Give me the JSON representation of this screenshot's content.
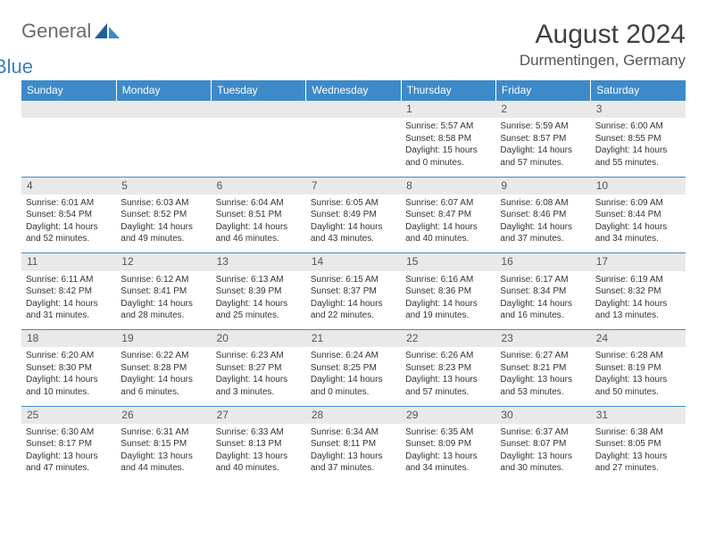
{
  "logo": {
    "general": "General",
    "blue": "Blue"
  },
  "title": {
    "month": "August 2024",
    "location": "Durmentingen, Germany"
  },
  "colors": {
    "header_bg": "#3e8ac9",
    "header_text": "#ffffff",
    "daynum_bg": "#e9e9e9",
    "cell_border": "#3e8ac9",
    "body_text": "#333333"
  },
  "daynames": [
    "Sunday",
    "Monday",
    "Tuesday",
    "Wednesday",
    "Thursday",
    "Friday",
    "Saturday"
  ],
  "weeks": [
    {
      "nums": [
        "",
        "",
        "",
        "",
        "1",
        "2",
        "3"
      ],
      "cells": [
        null,
        null,
        null,
        null,
        {
          "sunrise": "Sunrise: 5:57 AM",
          "sunset": "Sunset: 8:58 PM",
          "dl1": "Daylight: 15 hours",
          "dl2": "and 0 minutes."
        },
        {
          "sunrise": "Sunrise: 5:59 AM",
          "sunset": "Sunset: 8:57 PM",
          "dl1": "Daylight: 14 hours",
          "dl2": "and 57 minutes."
        },
        {
          "sunrise": "Sunrise: 6:00 AM",
          "sunset": "Sunset: 8:55 PM",
          "dl1": "Daylight: 14 hours",
          "dl2": "and 55 minutes."
        }
      ]
    },
    {
      "nums": [
        "4",
        "5",
        "6",
        "7",
        "8",
        "9",
        "10"
      ],
      "cells": [
        {
          "sunrise": "Sunrise: 6:01 AM",
          "sunset": "Sunset: 8:54 PM",
          "dl1": "Daylight: 14 hours",
          "dl2": "and 52 minutes."
        },
        {
          "sunrise": "Sunrise: 6:03 AM",
          "sunset": "Sunset: 8:52 PM",
          "dl1": "Daylight: 14 hours",
          "dl2": "and 49 minutes."
        },
        {
          "sunrise": "Sunrise: 6:04 AM",
          "sunset": "Sunset: 8:51 PM",
          "dl1": "Daylight: 14 hours",
          "dl2": "and 46 minutes."
        },
        {
          "sunrise": "Sunrise: 6:05 AM",
          "sunset": "Sunset: 8:49 PM",
          "dl1": "Daylight: 14 hours",
          "dl2": "and 43 minutes."
        },
        {
          "sunrise": "Sunrise: 6:07 AM",
          "sunset": "Sunset: 8:47 PM",
          "dl1": "Daylight: 14 hours",
          "dl2": "and 40 minutes."
        },
        {
          "sunrise": "Sunrise: 6:08 AM",
          "sunset": "Sunset: 8:46 PM",
          "dl1": "Daylight: 14 hours",
          "dl2": "and 37 minutes."
        },
        {
          "sunrise": "Sunrise: 6:09 AM",
          "sunset": "Sunset: 8:44 PM",
          "dl1": "Daylight: 14 hours",
          "dl2": "and 34 minutes."
        }
      ]
    },
    {
      "nums": [
        "11",
        "12",
        "13",
        "14",
        "15",
        "16",
        "17"
      ],
      "cells": [
        {
          "sunrise": "Sunrise: 6:11 AM",
          "sunset": "Sunset: 8:42 PM",
          "dl1": "Daylight: 14 hours",
          "dl2": "and 31 minutes."
        },
        {
          "sunrise": "Sunrise: 6:12 AM",
          "sunset": "Sunset: 8:41 PM",
          "dl1": "Daylight: 14 hours",
          "dl2": "and 28 minutes."
        },
        {
          "sunrise": "Sunrise: 6:13 AM",
          "sunset": "Sunset: 8:39 PM",
          "dl1": "Daylight: 14 hours",
          "dl2": "and 25 minutes."
        },
        {
          "sunrise": "Sunrise: 6:15 AM",
          "sunset": "Sunset: 8:37 PM",
          "dl1": "Daylight: 14 hours",
          "dl2": "and 22 minutes."
        },
        {
          "sunrise": "Sunrise: 6:16 AM",
          "sunset": "Sunset: 8:36 PM",
          "dl1": "Daylight: 14 hours",
          "dl2": "and 19 minutes."
        },
        {
          "sunrise": "Sunrise: 6:17 AM",
          "sunset": "Sunset: 8:34 PM",
          "dl1": "Daylight: 14 hours",
          "dl2": "and 16 minutes."
        },
        {
          "sunrise": "Sunrise: 6:19 AM",
          "sunset": "Sunset: 8:32 PM",
          "dl1": "Daylight: 14 hours",
          "dl2": "and 13 minutes."
        }
      ]
    },
    {
      "nums": [
        "18",
        "19",
        "20",
        "21",
        "22",
        "23",
        "24"
      ],
      "cells": [
        {
          "sunrise": "Sunrise: 6:20 AM",
          "sunset": "Sunset: 8:30 PM",
          "dl1": "Daylight: 14 hours",
          "dl2": "and 10 minutes."
        },
        {
          "sunrise": "Sunrise: 6:22 AM",
          "sunset": "Sunset: 8:28 PM",
          "dl1": "Daylight: 14 hours",
          "dl2": "and 6 minutes."
        },
        {
          "sunrise": "Sunrise: 6:23 AM",
          "sunset": "Sunset: 8:27 PM",
          "dl1": "Daylight: 14 hours",
          "dl2": "and 3 minutes."
        },
        {
          "sunrise": "Sunrise: 6:24 AM",
          "sunset": "Sunset: 8:25 PM",
          "dl1": "Daylight: 14 hours",
          "dl2": "and 0 minutes."
        },
        {
          "sunrise": "Sunrise: 6:26 AM",
          "sunset": "Sunset: 8:23 PM",
          "dl1": "Daylight: 13 hours",
          "dl2": "and 57 minutes."
        },
        {
          "sunrise": "Sunrise: 6:27 AM",
          "sunset": "Sunset: 8:21 PM",
          "dl1": "Daylight: 13 hours",
          "dl2": "and 53 minutes."
        },
        {
          "sunrise": "Sunrise: 6:28 AM",
          "sunset": "Sunset: 8:19 PM",
          "dl1": "Daylight: 13 hours",
          "dl2": "and 50 minutes."
        }
      ]
    },
    {
      "nums": [
        "25",
        "26",
        "27",
        "28",
        "29",
        "30",
        "31"
      ],
      "cells": [
        {
          "sunrise": "Sunrise: 6:30 AM",
          "sunset": "Sunset: 8:17 PM",
          "dl1": "Daylight: 13 hours",
          "dl2": "and 47 minutes."
        },
        {
          "sunrise": "Sunrise: 6:31 AM",
          "sunset": "Sunset: 8:15 PM",
          "dl1": "Daylight: 13 hours",
          "dl2": "and 44 minutes."
        },
        {
          "sunrise": "Sunrise: 6:33 AM",
          "sunset": "Sunset: 8:13 PM",
          "dl1": "Daylight: 13 hours",
          "dl2": "and 40 minutes."
        },
        {
          "sunrise": "Sunrise: 6:34 AM",
          "sunset": "Sunset: 8:11 PM",
          "dl1": "Daylight: 13 hours",
          "dl2": "and 37 minutes."
        },
        {
          "sunrise": "Sunrise: 6:35 AM",
          "sunset": "Sunset: 8:09 PM",
          "dl1": "Daylight: 13 hours",
          "dl2": "and 34 minutes."
        },
        {
          "sunrise": "Sunrise: 6:37 AM",
          "sunset": "Sunset: 8:07 PM",
          "dl1": "Daylight: 13 hours",
          "dl2": "and 30 minutes."
        },
        {
          "sunrise": "Sunrise: 6:38 AM",
          "sunset": "Sunset: 8:05 PM",
          "dl1": "Daylight: 13 hours",
          "dl2": "and 27 minutes."
        }
      ]
    }
  ]
}
